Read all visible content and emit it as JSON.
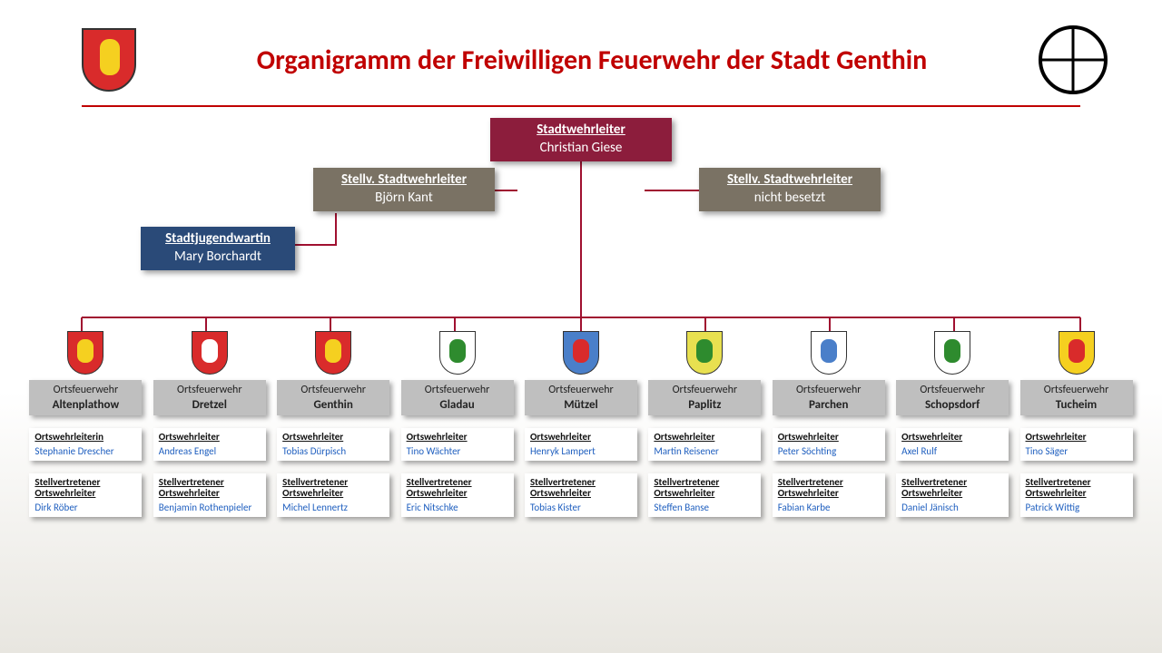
{
  "title": "Organigramm der Freiwilligen Feuerwehr der Stadt Genthin",
  "colors": {
    "title": "#c00000",
    "connector": "#a01030",
    "top_box_bg": "#8c1d3c",
    "stellv_bg": "#7a7264",
    "youth_bg": "#2a4a78",
    "unit_bg": "#bfbfbf",
    "person_link": "#1f5fbf"
  },
  "top": {
    "leader": {
      "role": "Stadtwehrleiter",
      "person": "Christian Giese"
    },
    "deputy1": {
      "role": "Stellv. Stadtwehrleiter",
      "person": "Björn Kant"
    },
    "deputy2": {
      "role": "Stellv. Stadtwehrleiter",
      "person": "nicht besetzt"
    },
    "youth": {
      "role": "Stadtjugendwartin",
      "person": "Mary Borchardt"
    }
  },
  "unit_label": "Ortsfeuerwehr",
  "leader_label_f": "Ortswehrleiterin",
  "leader_label_m": "Ortswehrleiter",
  "deputy_label": "Stellvertretener Ortswehrleiter",
  "units": [
    {
      "name": "Altenplathow",
      "crest_bg": "#d92b2b",
      "crest_inner": "#f5d020",
      "leader_role": "Ortswehrleiterin",
      "leader": "Stephanie Drescher",
      "deputy": "Dirk Röber"
    },
    {
      "name": "Dretzel",
      "crest_bg": "#d92b2b",
      "crest_inner": "#ffffff",
      "leader_role": "Ortswehrleiter",
      "leader": "Andreas Engel",
      "deputy": "Benjamin Rothenpieler"
    },
    {
      "name": "Genthin",
      "crest_bg": "#d92b2b",
      "crest_inner": "#f5d020",
      "leader_role": "Ortswehrleiter",
      "leader": "Tobias Dürpisch",
      "deputy": "Michel Lennertz"
    },
    {
      "name": "Gladau",
      "crest_bg": "#ffffff",
      "crest_inner": "#2e8b2e",
      "leader_role": "Ortswehrleiter",
      "leader": "Tino Wächter",
      "deputy": "Eric Nitschke"
    },
    {
      "name": "Mützel",
      "crest_bg": "#4a7fc9",
      "crest_inner": "#d92b2b",
      "leader_role": "Ortswehrleiter",
      "leader": "Henryk Lampert",
      "deputy": "Tobias Kister"
    },
    {
      "name": "Paplitz",
      "crest_bg": "#e8e050",
      "crest_inner": "#2e8b2e",
      "leader_role": "Ortswehrleiter",
      "leader": "Martin Reisener",
      "deputy": "Steffen Banse"
    },
    {
      "name": "Parchen",
      "crest_bg": "#ffffff",
      "crest_inner": "#4a7fc9",
      "leader_role": "Ortswehrleiter",
      "leader": "Peter Söchting",
      "deputy": "Fabian Karbe"
    },
    {
      "name": "Schopsdorf",
      "crest_bg": "#ffffff",
      "crest_inner": "#2e8b2e",
      "leader_role": "Ortswehrleiter",
      "leader": "Axel Rulf",
      "deputy": "Daniel Jänisch"
    },
    {
      "name": "Tucheim",
      "crest_bg": "#f5d020",
      "crest_inner": "#d92b2b",
      "leader_role": "Ortswehrleiter",
      "leader": "Tino Säger",
      "deputy": "Patrick Wittig"
    }
  ]
}
